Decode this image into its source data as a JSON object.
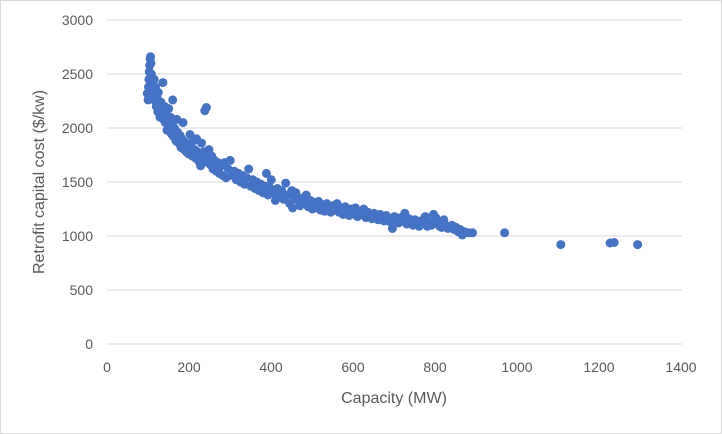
{
  "chart_data": {
    "type": "scatter",
    "title": "",
    "xlabel": "Capacity (MW)",
    "ylabel": "Retrofit capital cost ($/kw)",
    "xlim": [
      0,
      1400
    ],
    "ylim": [
      0,
      3000
    ],
    "xticks": [
      0,
      200,
      400,
      600,
      800,
      1000,
      1200,
      1400
    ],
    "yticks": [
      0,
      500,
      1000,
      1500,
      2000,
      2500,
      3000
    ],
    "x_tick_labels": [
      "0",
      "200",
      "400",
      "600",
      "800",
      "1000",
      "1200",
      "1400"
    ],
    "y_tick_labels": [
      "0",
      "500",
      "1000",
      "1500",
      "2000",
      "2500",
      "3000"
    ],
    "grid": "horizontal",
    "marker_color": "#4472c4",
    "gridline_color": "#d9d9d9",
    "series": [
      {
        "name": "Retrofit capital cost",
        "points": [
          [
            98,
            2320
          ],
          [
            100,
            2260
          ],
          [
            101,
            2380
          ],
          [
            102,
            2450
          ],
          [
            103,
            2520
          ],
          [
            104,
            2580
          ],
          [
            105,
            2640
          ],
          [
            106,
            2660
          ],
          [
            107,
            2600
          ],
          [
            108,
            2500
          ],
          [
            110,
            2420
          ],
          [
            112,
            2350
          ],
          [
            114,
            2300
          ],
          [
            115,
            2450
          ],
          [
            117,
            2250
          ],
          [
            118,
            2380
          ],
          [
            120,
            2200
          ],
          [
            122,
            2280
          ],
          [
            124,
            2150
          ],
          [
            125,
            2330
          ],
          [
            127,
            2180
          ],
          [
            129,
            2100
          ],
          [
            131,
            2240
          ],
          [
            133,
            2130
          ],
          [
            135,
            2160
          ],
          [
            136,
            2420
          ],
          [
            138,
            2080
          ],
          [
            140,
            2200
          ],
          [
            142,
            2050
          ],
          [
            144,
            2120
          ],
          [
            146,
            1980
          ],
          [
            148,
            2060
          ],
          [
            150,
            2180
          ],
          [
            152,
            2010
          ],
          [
            154,
            2100
          ],
          [
            156,
            1950
          ],
          [
            158,
            2040
          ],
          [
            160,
            2260
          ],
          [
            162,
            1920
          ],
          [
            164,
            2000
          ],
          [
            166,
            1980
          ],
          [
            168,
            1880
          ],
          [
            170,
            2080
          ],
          [
            172,
            1960
          ],
          [
            175,
            1860
          ],
          [
            178,
            1930
          ],
          [
            180,
            1820
          ],
          [
            182,
            1900
          ],
          [
            185,
            2050
          ],
          [
            188,
            1800
          ],
          [
            190,
            1870
          ],
          [
            193,
            1780
          ],
          [
            196,
            1840
          ],
          [
            199,
            1760
          ],
          [
            202,
            1940
          ],
          [
            205,
            1820
          ],
          [
            208,
            1740
          ],
          [
            210,
            1880
          ],
          [
            213,
            1800
          ],
          [
            216,
            1720
          ],
          [
            218,
            1900
          ],
          [
            220,
            1780
          ],
          [
            224,
            1690
          ],
          [
            226,
            1760
          ],
          [
            228,
            1650
          ],
          [
            230,
            1860
          ],
          [
            233,
            1700
          ],
          [
            236,
            1780
          ],
          [
            238,
            2160
          ],
          [
            242,
            2190
          ],
          [
            244,
            1720
          ],
          [
            246,
            1680
          ],
          [
            248,
            1800
          ],
          [
            252,
            1660
          ],
          [
            255,
            1740
          ],
          [
            258,
            1620
          ],
          [
            262,
            1700
          ],
          [
            266,
            1600
          ],
          [
            270,
            1680
          ],
          [
            274,
            1580
          ],
          [
            278,
            1650
          ],
          [
            282,
            1560
          ],
          [
            286,
            1680
          ],
          [
            290,
            1540
          ],
          [
            295,
            1620
          ],
          [
            300,
            1700
          ],
          [
            305,
            1560
          ],
          [
            310,
            1600
          ],
          [
            315,
            1520
          ],
          [
            320,
            1580
          ],
          [
            325,
            1500
          ],
          [
            330,
            1560
          ],
          [
            335,
            1480
          ],
          [
            340,
            1540
          ],
          [
            345,
            1620
          ],
          [
            350,
            1460
          ],
          [
            355,
            1520
          ],
          [
            360,
            1440
          ],
          [
            365,
            1500
          ],
          [
            370,
            1420
          ],
          [
            375,
            1480
          ],
          [
            380,
            1400
          ],
          [
            385,
            1460
          ],
          [
            388,
            1580
          ],
          [
            392,
            1380
          ],
          [
            396,
            1450
          ],
          [
            400,
            1520
          ],
          [
            405,
            1400
          ],
          [
            410,
            1330
          ],
          [
            415,
            1440
          ],
          [
            420,
            1370
          ],
          [
            425,
            1420
          ],
          [
            430,
            1340
          ],
          [
            435,
            1490
          ],
          [
            440,
            1380
          ],
          [
            445,
            1300
          ],
          [
            450,
            1420
          ],
          [
            452,
            1260
          ],
          [
            456,
            1360
          ],
          [
            460,
            1400
          ],
          [
            465,
            1330
          ],
          [
            470,
            1280
          ],
          [
            475,
            1350
          ],
          [
            480,
            1300
          ],
          [
            485,
            1380
          ],
          [
            490,
            1270
          ],
          [
            495,
            1330
          ],
          [
            500,
            1250
          ],
          [
            505,
            1310
          ],
          [
            510,
            1260
          ],
          [
            515,
            1320
          ],
          [
            520,
            1240
          ],
          [
            525,
            1290
          ],
          [
            530,
            1230
          ],
          [
            535,
            1300
          ],
          [
            540,
            1250
          ],
          [
            545,
            1220
          ],
          [
            550,
            1280
          ],
          [
            555,
            1240
          ],
          [
            560,
            1300
          ],
          [
            565,
            1220
          ],
          [
            570,
            1260
          ],
          [
            575,
            1200
          ],
          [
            580,
            1270
          ],
          [
            585,
            1230
          ],
          [
            590,
            1190
          ],
          [
            595,
            1250
          ],
          [
            600,
            1210
          ],
          [
            605,
            1260
          ],
          [
            610,
            1180
          ],
          [
            615,
            1230
          ],
          [
            620,
            1200
          ],
          [
            625,
            1250
          ],
          [
            630,
            1170
          ],
          [
            635,
            1220
          ],
          [
            640,
            1190
          ],
          [
            645,
            1160
          ],
          [
            650,
            1210
          ],
          [
            655,
            1180
          ],
          [
            660,
            1150
          ],
          [
            665,
            1200
          ],
          [
            670,
            1170
          ],
          [
            675,
            1140
          ],
          [
            680,
            1190
          ],
          [
            685,
            1160
          ],
          [
            690,
            1130
          ],
          [
            695,
            1070
          ],
          [
            700,
            1180
          ],
          [
            705,
            1150
          ],
          [
            710,
            1120
          ],
          [
            715,
            1170
          ],
          [
            720,
            1140
          ],
          [
            725,
            1210
          ],
          [
            730,
            1110
          ],
          [
            735,
            1160
          ],
          [
            740,
            1130
          ],
          [
            745,
            1100
          ],
          [
            750,
            1150
          ],
          [
            755,
            1120
          ],
          [
            760,
            1090
          ],
          [
            765,
            1140
          ],
          [
            770,
            1110
          ],
          [
            775,
            1180
          ],
          [
            780,
            1090
          ],
          [
            785,
            1130
          ],
          [
            790,
            1100
          ],
          [
            795,
            1200
          ],
          [
            800,
            1170
          ],
          [
            805,
            1120
          ],
          [
            810,
            1090
          ],
          [
            815,
            1080
          ],
          [
            820,
            1150
          ],
          [
            825,
            1100
          ],
          [
            830,
            1070
          ],
          [
            840,
            1100
          ],
          [
            845,
            1060
          ],
          [
            850,
            1080
          ],
          [
            855,
            1040
          ],
          [
            860,
            1060
          ],
          [
            865,
            1010
          ],
          [
            870,
            1040
          ],
          [
            880,
            1030
          ],
          [
            890,
            1030
          ],
          [
            968,
            1030
          ],
          [
            1105,
            920
          ],
          [
            1225,
            935
          ],
          [
            1235,
            940
          ],
          [
            1292,
            920
          ]
        ]
      }
    ]
  }
}
